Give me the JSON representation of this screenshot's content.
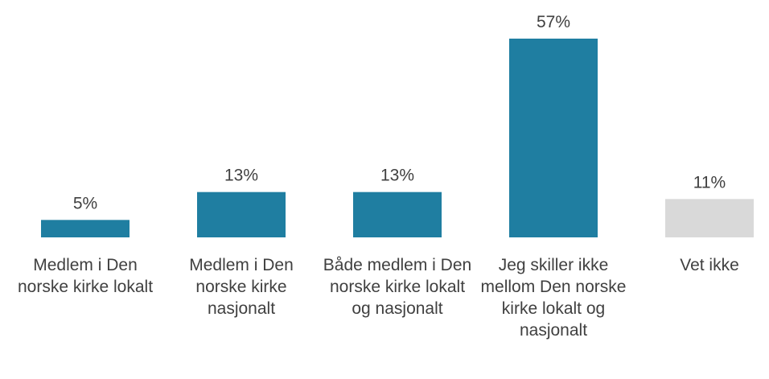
{
  "chart_data": {
    "type": "bar",
    "categories": [
      "Medlem i Den norske kirke lokalt",
      "Medlem i Den norske kirke nasjonalt",
      "Både medlem i Den norske kirke lokalt og nasjonalt",
      "Jeg skiller ikke mellom Den norske kirke lokalt og nasjonalt",
      "Vet ikke"
    ],
    "values": [
      5,
      13,
      13,
      57,
      11
    ],
    "value_labels": [
      "5%",
      "13%",
      "13%",
      "57%",
      "11%"
    ],
    "colors": [
      "#1f7ea1",
      "#1f7ea1",
      "#1f7ea1",
      "#1f7ea1",
      "#d9d9d9"
    ]
  }
}
